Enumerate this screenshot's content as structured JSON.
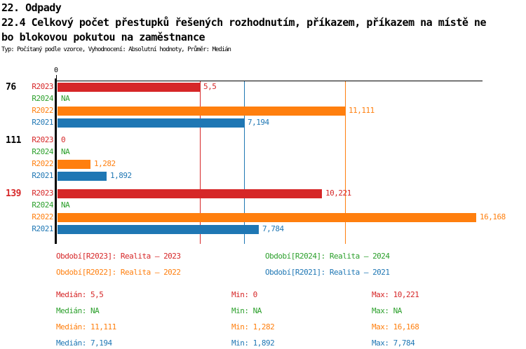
{
  "header": {
    "title_line1": "22. Odpady",
    "title_line2": "22.4 Celkový počet přestupků řešených rozhodnutím, příkazem, příkazem na místě ne",
    "title_line3": "bo blokovou pokutou na zaměstnance",
    "subtitle": "Typ: Počítaný podle vzorce, Vyhodnocení: Absolutní hodnoty, Průměr: Medián"
  },
  "colors": {
    "R2023": "#d62728",
    "R2024": "#2ca02c",
    "R2022": "#ff7f0e",
    "R2021": "#1f77b4",
    "axis": "#000000",
    "group_label_highlight": "#d62728",
    "group_label_default": "#000000"
  },
  "chart_data": {
    "type": "bar",
    "orientation": "horizontal",
    "title": "22.4 Celkový počet přestupků řešených rozhodnutím, příkazem, příkazem na místě nebo blokovou pokutou na zaměstnance",
    "axis": {
      "tick_label": "0",
      "min": 0,
      "max": 16.5,
      "grid": false
    },
    "series_order": [
      "R2023",
      "R2024",
      "R2022",
      "R2021"
    ],
    "groups": [
      {
        "label": "76",
        "label_color": "#000000",
        "bars": [
          {
            "series": "R2023",
            "value": 5.5,
            "display": "5,5"
          },
          {
            "series": "R2024",
            "value": null,
            "display": "NA"
          },
          {
            "series": "R2022",
            "value": 11.111,
            "display": "11,111"
          },
          {
            "series": "R2021",
            "value": 7.194,
            "display": "7,194"
          }
        ]
      },
      {
        "label": "111",
        "label_color": "#000000",
        "bars": [
          {
            "series": "R2023",
            "value": 0,
            "display": "0"
          },
          {
            "series": "R2024",
            "value": null,
            "display": "NA"
          },
          {
            "series": "R2022",
            "value": 1.282,
            "display": "1,282"
          },
          {
            "series": "R2021",
            "value": 1.892,
            "display": "1,892"
          }
        ]
      },
      {
        "label": "139",
        "label_color": "#d62728",
        "bars": [
          {
            "series": "R2023",
            "value": 10.221,
            "display": "10,221"
          },
          {
            "series": "R2024",
            "value": null,
            "display": "NA"
          },
          {
            "series": "R2022",
            "value": 16.168,
            "display": "16,168"
          },
          {
            "series": "R2021",
            "value": 7.784,
            "display": "7,784"
          }
        ]
      }
    ],
    "median_lines": [
      {
        "series": "R2023",
        "value": 5.5
      },
      {
        "series": "R2021",
        "value": 7.194
      },
      {
        "series": "R2022",
        "value": 11.111
      }
    ]
  },
  "legend": {
    "items": [
      {
        "series": "R2023",
        "label": "Období[R2023]: Realita – 2023"
      },
      {
        "series": "R2024",
        "label": "Období[R2024]: Realita – 2024"
      },
      {
        "series": "R2022",
        "label": "Období[R2022]: Realita – 2022"
      },
      {
        "series": "R2021",
        "label": "Období[R2021]: Realita – 2021"
      }
    ]
  },
  "stats": {
    "labels": {
      "median": "Medián",
      "min": "Min",
      "max": "Max"
    },
    "rows": [
      {
        "series": "R2023",
        "median": "5,5",
        "min": "0",
        "max": "10,221"
      },
      {
        "series": "R2024",
        "median": "NA",
        "min": "NA",
        "max": "NA"
      },
      {
        "series": "R2022",
        "median": "11,111",
        "min": "1,282",
        "max": "16,168"
      },
      {
        "series": "R2021",
        "median": "7,194",
        "min": "1,892",
        "max": "7,784"
      }
    ]
  }
}
